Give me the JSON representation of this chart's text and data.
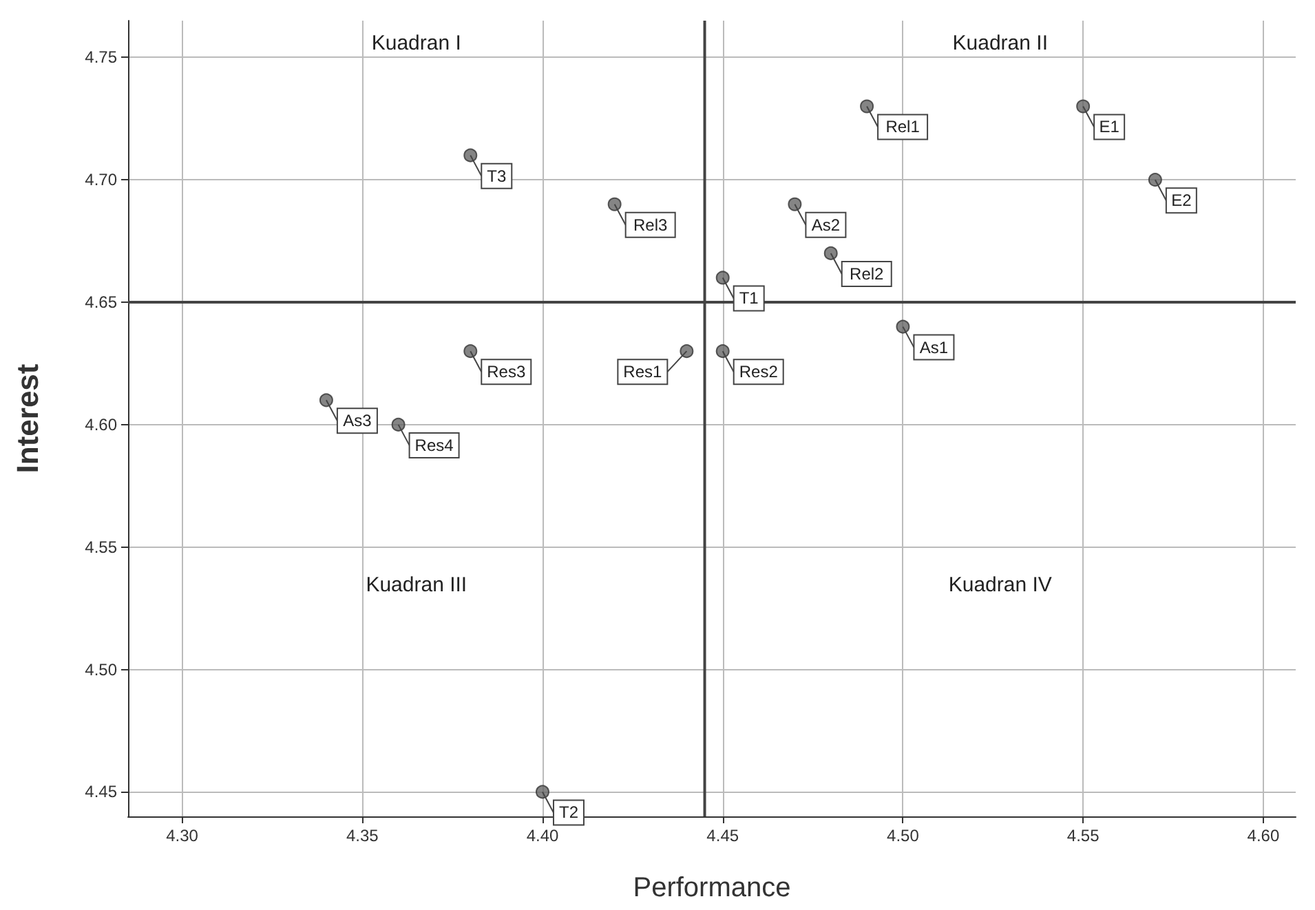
{
  "chart_data": {
    "type": "scatter",
    "xlabel": "Performance",
    "ylabel": "Interest",
    "x": [
      4.55,
      4.57,
      4.49,
      4.47,
      4.48,
      4.45,
      4.5,
      4.45,
      4.44,
      4.42,
      4.38,
      4.38,
      4.34,
      4.36,
      4.4
    ],
    "values": [
      4.73,
      4.7,
      4.73,
      4.69,
      4.67,
      4.66,
      4.64,
      4.63,
      4.63,
      4.69,
      4.71,
      4.63,
      4.61,
      4.6,
      4.45
    ],
    "color": "#666666",
    "marker": "circle",
    "xlim": [
      4.285,
      4.609
    ],
    "xticks": [
      {
        "value": 4.3,
        "label": "4.30"
      },
      4.35,
      {
        "value": 4.4,
        "label": "4.40"
      },
      4.45,
      {
        "value": 4.5,
        "label": "4.50"
      },
      4.55,
      {
        "value": 4.6,
        "label": "4.60"
      }
    ],
    "ylim": [
      4.44,
      4.765
    ],
    "yticks": [
      4.45,
      {
        "value": 4.5,
        "label": "4.50"
      },
      4.55,
      {
        "value": 4.6,
        "label": "4.60"
      },
      4.65,
      {
        "value": 4.7,
        "label": "4.70"
      },
      4.75
    ],
    "grid": true,
    "ref_lines": [
      {
        "axis": "x",
        "value": 4.445
      },
      {
        "axis": "y",
        "value": 4.65
      }
    ],
    "annotations": [
      {
        "text": "E1",
        "x": 4.55,
        "y": 4.73
      },
      {
        "text": "E2",
        "x": 4.57,
        "y": 4.7
      },
      {
        "text": "Rel1",
        "x": 4.49,
        "y": 4.73
      },
      {
        "text": "As2",
        "x": 4.47,
        "y": 4.69
      },
      {
        "text": "Rel2",
        "x": 4.48,
        "y": 4.67
      },
      {
        "text": "T1",
        "x": 4.45,
        "y": 4.66
      },
      {
        "text": "As1",
        "x": 4.5,
        "y": 4.64
      },
      {
        "text": "Res2",
        "x": 4.45,
        "y": 4.63
      },
      {
        "text": "Res1",
        "x": 4.44,
        "y": 4.63
      },
      {
        "text": "Rel3",
        "x": 4.42,
        "y": 4.69
      },
      {
        "text": "T3",
        "x": 4.38,
        "y": 4.71
      },
      {
        "text": "Res3",
        "x": 4.38,
        "y": 4.63
      },
      {
        "text": "As3",
        "x": 4.34,
        "y": 4.61
      },
      {
        "text": "Res4",
        "x": 4.36,
        "y": 4.6
      },
      {
        "text": "T2",
        "x": 4.4,
        "y": 4.45
      },
      "Kuadran I",
      "Kuadran II",
      "Kuadran III",
      "Kuadran IV"
    ]
  }
}
